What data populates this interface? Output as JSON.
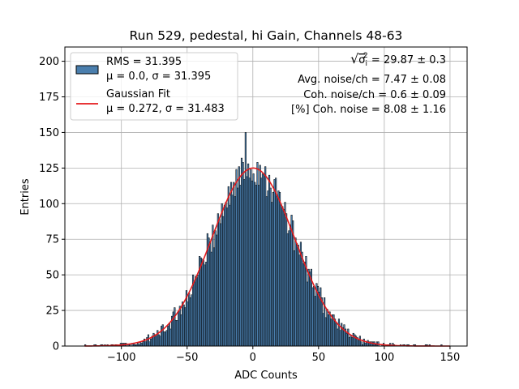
{
  "chart_data": {
    "type": "bar",
    "title": "Run 529, pedestal, hi Gain, Channels 48-63",
    "xlabel": "ADC Counts",
    "ylabel": "Entries",
    "xlim": [
      -143,
      163
    ],
    "ylim": [
      0,
      210
    ],
    "x_ticks": [
      -100,
      -50,
      0,
      50,
      100,
      150
    ],
    "y_ticks": [
      0,
      25,
      50,
      75,
      100,
      125,
      150,
      175,
      200
    ],
    "x_tick_labels": [
      "−100",
      "−50",
      "0",
      "50",
      "100",
      "150"
    ],
    "y_tick_labels": [
      "0",
      "25",
      "50",
      "75",
      "100",
      "125",
      "150",
      "175",
      "200"
    ],
    "grid": true,
    "legend_placement": "top-left",
    "histogram": {
      "label": "RMS = 31.395",
      "label2": "μ = 0.0, σ = 31.395",
      "bin_range": [
        -128,
        150
      ],
      "bin_width": 1,
      "mean": 0.0,
      "sigma": 31.395,
      "peak_entries": 150,
      "face_color": "#4a7ead",
      "edge_color": "#000000"
    },
    "gaussian_fit": {
      "label": "Gaussian Fit",
      "label2": "μ = 0.272, σ = 31.483",
      "mu": 0.272,
      "sigma": 31.483,
      "amplitude": 125,
      "color": "#e41a1c"
    },
    "annotations": {
      "sqrt_prefix": "√",
      "sigma_sym": "σ",
      "sigma_sub": "i",
      "sigma_sup": "2",
      "total_noise_value": " = 29.87 ± 0.3",
      "avg_noise": "Avg. noise/ch = 7.47 ± 0.08",
      "coh_noise": "Coh. noise/ch = 0.6 ± 0.09",
      "coh_noise_pct": "[%] Coh. noise = 8.08 ± 1.16"
    }
  }
}
